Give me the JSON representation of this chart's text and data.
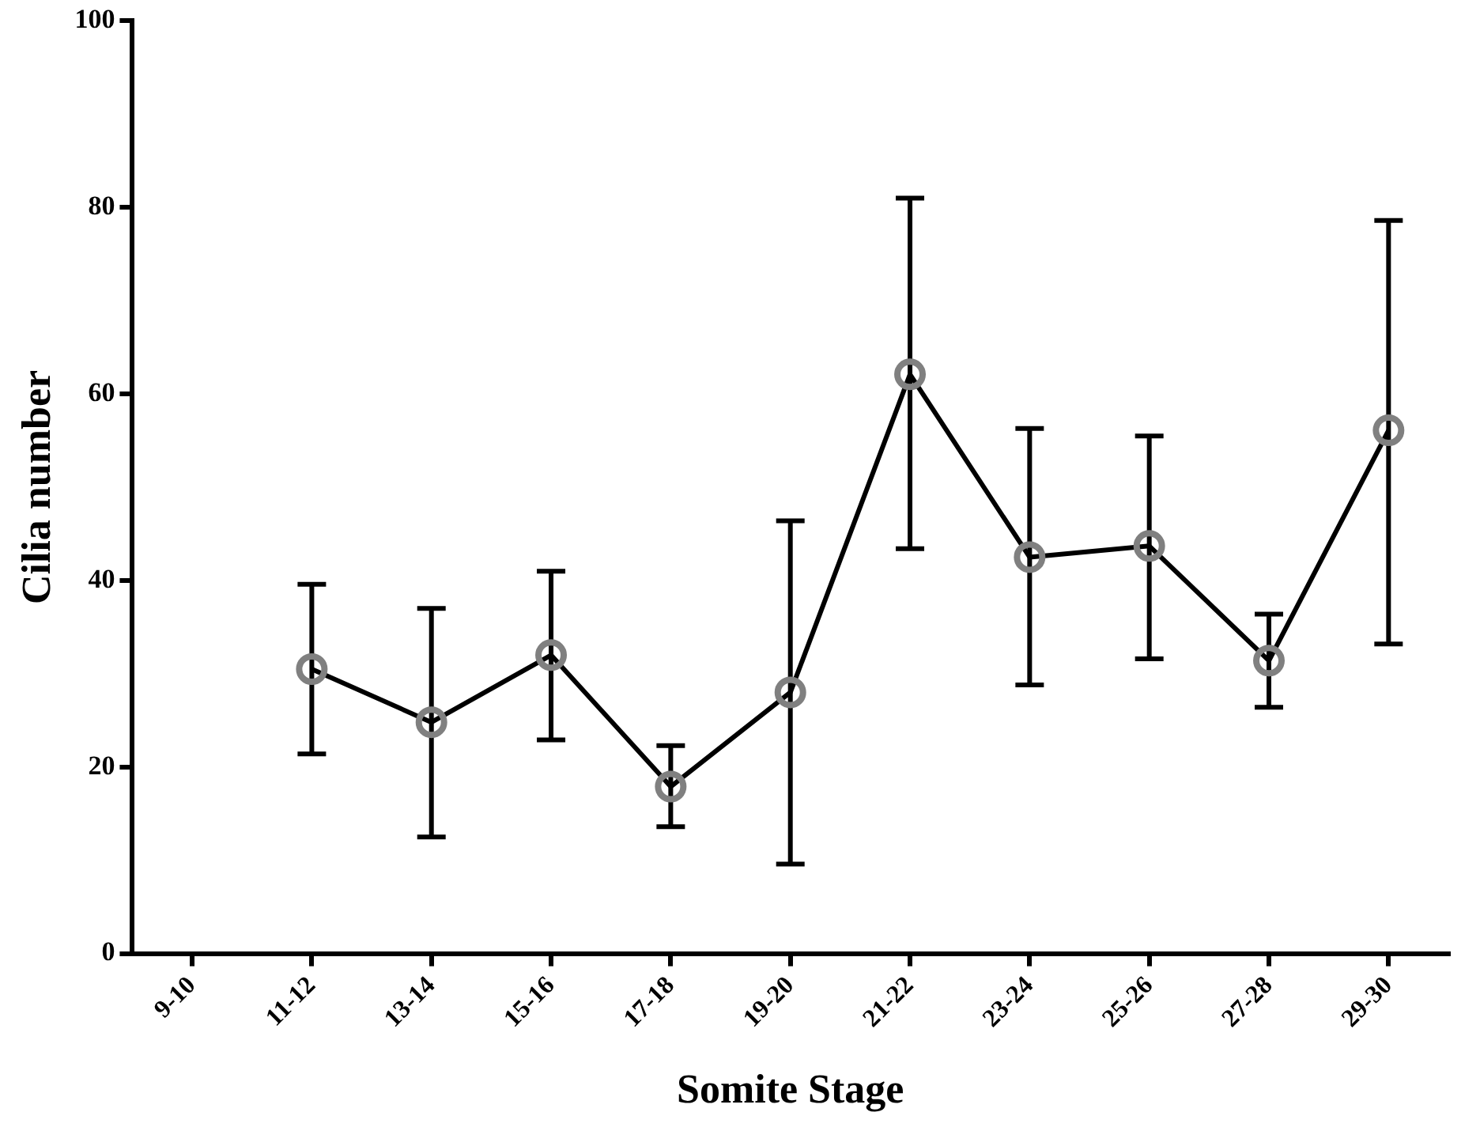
{
  "chart_data": {
    "type": "line",
    "xlabel": "Somite Stage",
    "ylabel": "Cilia number",
    "categories": [
      "9-10",
      "11-12",
      "13-14",
      "15-16",
      "17-18",
      "19-20",
      "21-22",
      "23-24",
      "25-26",
      "27-28",
      "29-30"
    ],
    "series": [
      {
        "color": "#000000",
        "values": [
          null,
          30.5,
          24.8,
          32,
          17.9,
          28,
          62.1,
          42.5,
          43.7,
          31.4,
          56.1
        ],
        "errors": [
          null,
          [
            21.4,
            39.6
          ],
          [
            12.5,
            37
          ],
          [
            22.9,
            41
          ],
          [
            13.6,
            22.3
          ],
          [
            9.6,
            46.4
          ],
          [
            43.4,
            81
          ],
          [
            28.8,
            56.3
          ],
          [
            31.6,
            55.5
          ],
          [
            26.4,
            36.4
          ],
          [
            33.2,
            78.6
          ]
        ]
      }
    ],
    "ylim": [
      0,
      100
    ],
    "yticks": [
      0,
      20,
      40,
      60,
      80,
      100
    ],
    "grid": false,
    "legend": false,
    "marker": "circle",
    "line_style": "solid"
  }
}
